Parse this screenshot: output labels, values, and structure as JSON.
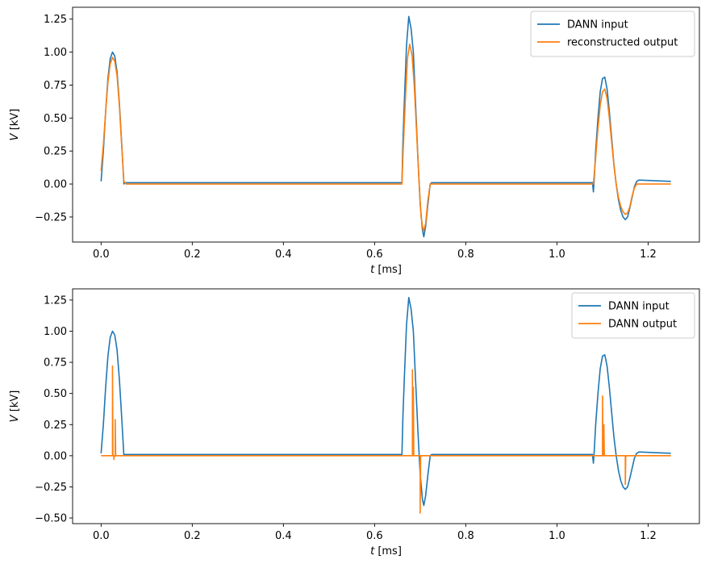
{
  "chart_data": [
    {
      "type": "line",
      "xlabel_var": "t",
      "xlabel_unit": " [ms]",
      "ylabel_var": "V",
      "ylabel_unit": " [kV]",
      "xlim": [
        -0.0625,
        1.3125
      ],
      "ylim": [
        -0.44,
        1.34
      ],
      "xticks": [
        0.0,
        0.2,
        0.4,
        0.6,
        0.8,
        1.0,
        1.2
      ],
      "xtick_labels": [
        "0.0",
        "0.2",
        "0.4",
        "0.6",
        "0.8",
        "1.0",
        "1.2"
      ],
      "yticks": [
        -0.25,
        0.0,
        0.25,
        0.5,
        0.75,
        1.0,
        1.25
      ],
      "ytick_labels": [
        "−0.25",
        "0.00",
        "0.25",
        "0.50",
        "0.75",
        "1.00",
        "1.25"
      ],
      "grid": false,
      "legend_position": "top-right",
      "series": [
        {
          "name": "DANN input",
          "color": "#1f77b4",
          "points": [
            [
              0.0,
              0.02
            ],
            [
              0.005,
              0.25
            ],
            [
              0.01,
              0.55
            ],
            [
              0.015,
              0.8
            ],
            [
              0.02,
              0.95
            ],
            [
              0.025,
              1.0
            ],
            [
              0.03,
              0.97
            ],
            [
              0.035,
              0.85
            ],
            [
              0.04,
              0.62
            ],
            [
              0.045,
              0.32
            ],
            [
              0.05,
              0.0
            ],
            [
              0.052,
              0.01
            ],
            [
              0.66,
              0.01
            ],
            [
              0.662,
              0.3
            ],
            [
              0.665,
              0.6
            ],
            [
              0.67,
              1.05
            ],
            [
              0.675,
              1.27
            ],
            [
              0.68,
              1.18
            ],
            [
              0.685,
              1.0
            ],
            [
              0.69,
              0.6
            ],
            [
              0.695,
              0.2
            ],
            [
              0.7,
              -0.15
            ],
            [
              0.705,
              -0.35
            ],
            [
              0.708,
              -0.4
            ],
            [
              0.712,
              -0.32
            ],
            [
              0.717,
              -0.15
            ],
            [
              0.722,
              0.0
            ],
            [
              0.725,
              0.01
            ],
            [
              1.078,
              0.01
            ],
            [
              1.08,
              -0.06
            ],
            [
              1.082,
              0.05
            ],
            [
              1.085,
              0.25
            ],
            [
              1.09,
              0.5
            ],
            [
              1.095,
              0.7
            ],
            [
              1.1,
              0.8
            ],
            [
              1.105,
              0.81
            ],
            [
              1.11,
              0.72
            ],
            [
              1.115,
              0.55
            ],
            [
              1.12,
              0.35
            ],
            [
              1.125,
              0.15
            ],
            [
              1.13,
              0.0
            ],
            [
              1.135,
              -0.12
            ],
            [
              1.14,
              -0.2
            ],
            [
              1.145,
              -0.25
            ],
            [
              1.15,
              -0.27
            ],
            [
              1.155,
              -0.25
            ],
            [
              1.16,
              -0.18
            ],
            [
              1.165,
              -0.1
            ],
            [
              1.17,
              -0.02
            ],
            [
              1.175,
              0.02
            ],
            [
              1.18,
              0.03
            ],
            [
              1.25,
              0.02
            ]
          ]
        },
        {
          "name": "reconstructed output",
          "color": "#ff7f0e",
          "points": [
            [
              0.0,
              0.1
            ],
            [
              0.005,
              0.3
            ],
            [
              0.01,
              0.55
            ],
            [
              0.015,
              0.77
            ],
            [
              0.02,
              0.91
            ],
            [
              0.025,
              0.96
            ],
            [
              0.03,
              0.93
            ],
            [
              0.035,
              0.82
            ],
            [
              0.04,
              0.6
            ],
            [
              0.045,
              0.3
            ],
            [
              0.05,
              0.02
            ],
            [
              0.055,
              0.0
            ],
            [
              0.66,
              0.0
            ],
            [
              0.662,
              0.2
            ],
            [
              0.667,
              0.6
            ],
            [
              0.672,
              0.95
            ],
            [
              0.677,
              1.06
            ],
            [
              0.682,
              0.98
            ],
            [
              0.687,
              0.75
            ],
            [
              0.692,
              0.4
            ],
            [
              0.697,
              0.05
            ],
            [
              0.702,
              -0.25
            ],
            [
              0.707,
              -0.36
            ],
            [
              0.712,
              -0.3
            ],
            [
              0.717,
              -0.12
            ],
            [
              0.722,
              0.0
            ],
            [
              1.08,
              0.0
            ],
            [
              1.085,
              0.2
            ],
            [
              1.09,
              0.42
            ],
            [
              1.095,
              0.6
            ],
            [
              1.1,
              0.7
            ],
            [
              1.105,
              0.72
            ],
            [
              1.11,
              0.65
            ],
            [
              1.115,
              0.5
            ],
            [
              1.12,
              0.32
            ],
            [
              1.125,
              0.14
            ],
            [
              1.13,
              0.0
            ],
            [
              1.135,
              -0.1
            ],
            [
              1.14,
              -0.17
            ],
            [
              1.145,
              -0.21
            ],
            [
              1.15,
              -0.23
            ],
            [
              1.155,
              -0.22
            ],
            [
              1.16,
              -0.17
            ],
            [
              1.165,
              -0.09
            ],
            [
              1.17,
              -0.03
            ],
            [
              1.175,
              0.0
            ],
            [
              1.25,
              0.0
            ]
          ]
        }
      ]
    },
    {
      "type": "line",
      "xlabel_var": "t",
      "xlabel_unit": " [ms]",
      "ylabel_var": "V",
      "ylabel_unit": " [kV]",
      "xlim": [
        -0.0625,
        1.3125
      ],
      "ylim": [
        -0.545,
        1.34
      ],
      "xticks": [
        0.0,
        0.2,
        0.4,
        0.6,
        0.8,
        1.0,
        1.2
      ],
      "xtick_labels": [
        "0.0",
        "0.2",
        "0.4",
        "0.6",
        "0.8",
        "1.0",
        "1.2"
      ],
      "yticks": [
        -0.5,
        -0.25,
        0.0,
        0.25,
        0.5,
        0.75,
        1.0,
        1.25
      ],
      "ytick_labels": [
        "−0.50",
        "−0.25",
        "0.00",
        "0.25",
        "0.50",
        "0.75",
        "1.00",
        "1.25"
      ],
      "grid": false,
      "legend_position": "top-right",
      "series": [
        {
          "name": "DANN input",
          "color": "#1f77b4",
          "points": [
            [
              0.0,
              0.02
            ],
            [
              0.005,
              0.25
            ],
            [
              0.01,
              0.55
            ],
            [
              0.015,
              0.8
            ],
            [
              0.02,
              0.95
            ],
            [
              0.025,
              1.0
            ],
            [
              0.03,
              0.97
            ],
            [
              0.035,
              0.85
            ],
            [
              0.04,
              0.62
            ],
            [
              0.045,
              0.32
            ],
            [
              0.05,
              0.0
            ],
            [
              0.052,
              0.01
            ],
            [
              0.66,
              0.01
            ],
            [
              0.662,
              0.3
            ],
            [
              0.665,
              0.6
            ],
            [
              0.67,
              1.05
            ],
            [
              0.675,
              1.27
            ],
            [
              0.68,
              1.18
            ],
            [
              0.685,
              1.0
            ],
            [
              0.69,
              0.6
            ],
            [
              0.695,
              0.2
            ],
            [
              0.7,
              -0.15
            ],
            [
              0.705,
              -0.35
            ],
            [
              0.708,
              -0.4
            ],
            [
              0.712,
              -0.32
            ],
            [
              0.717,
              -0.15
            ],
            [
              0.722,
              0.0
            ],
            [
              0.725,
              0.01
            ],
            [
              1.078,
              0.01
            ],
            [
              1.08,
              -0.06
            ],
            [
              1.082,
              0.05
            ],
            [
              1.085,
              0.25
            ],
            [
              1.09,
              0.5
            ],
            [
              1.095,
              0.7
            ],
            [
              1.1,
              0.8
            ],
            [
              1.105,
              0.81
            ],
            [
              1.11,
              0.72
            ],
            [
              1.115,
              0.55
            ],
            [
              1.12,
              0.35
            ],
            [
              1.125,
              0.15
            ],
            [
              1.13,
              0.0
            ],
            [
              1.135,
              -0.12
            ],
            [
              1.14,
              -0.2
            ],
            [
              1.145,
              -0.25
            ],
            [
              1.15,
              -0.27
            ],
            [
              1.155,
              -0.25
            ],
            [
              1.16,
              -0.18
            ],
            [
              1.165,
              -0.1
            ],
            [
              1.17,
              -0.02
            ],
            [
              1.175,
              0.02
            ],
            [
              1.18,
              0.03
            ],
            [
              1.25,
              0.02
            ]
          ]
        },
        {
          "name": "DANN output",
          "color": "#ff7f0e",
          "points": [
            [
              0.0,
              0.0
            ],
            [
              0.025,
              0.0
            ],
            [
              0.025,
              0.72
            ],
            [
              0.026,
              0.0
            ],
            [
              0.028,
              0.0
            ],
            [
              0.028,
              -0.03
            ],
            [
              0.029,
              0.0
            ],
            [
              0.031,
              0.0
            ],
            [
              0.031,
              0.29
            ],
            [
              0.032,
              0.0
            ],
            [
              0.683,
              0.0
            ],
            [
              0.683,
              0.69
            ],
            [
              0.684,
              0.0
            ],
            [
              0.685,
              0.0
            ],
            [
              0.685,
              0.55
            ],
            [
              0.686,
              0.0
            ],
            [
              0.7,
              0.0
            ],
            [
              0.7,
              -0.46
            ],
            [
              0.701,
              0.0
            ],
            [
              1.1,
              0.0
            ],
            [
              1.1,
              0.48
            ],
            [
              1.101,
              0.0
            ],
            [
              1.103,
              0.0
            ],
            [
              1.103,
              0.25
            ],
            [
              1.104,
              0.0
            ],
            [
              1.15,
              0.0
            ],
            [
              1.15,
              -0.23
            ],
            [
              1.151,
              0.0
            ],
            [
              1.25,
              0.0
            ]
          ]
        }
      ]
    }
  ]
}
